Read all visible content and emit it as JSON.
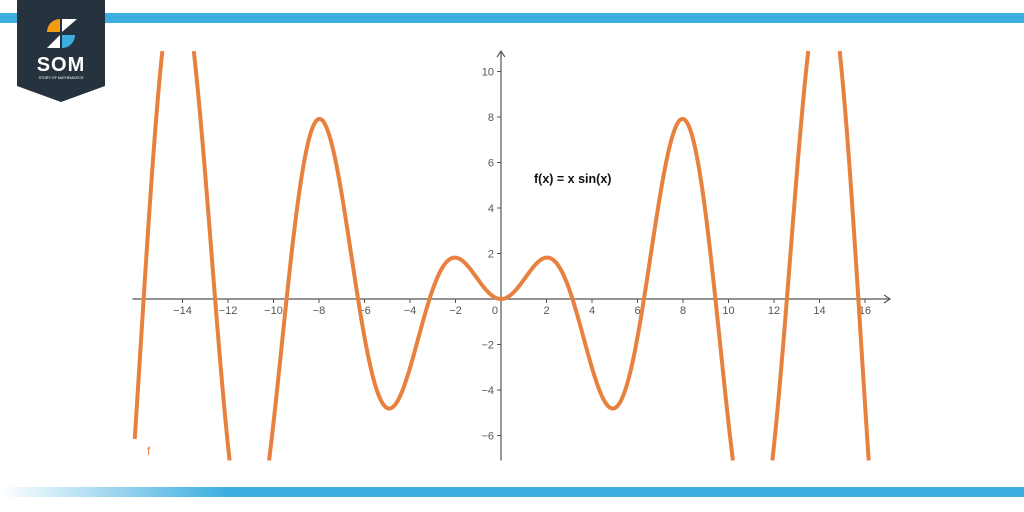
{
  "brand": {
    "logo_text": "SOM",
    "logo_subtext": "STORY OF MATHEMATICS",
    "colors": {
      "bar": "#3daee0",
      "logo_bg": "#26333f",
      "orange": "#f39c12",
      "blue": "#3daee0"
    }
  },
  "chart_data": {
    "type": "line",
    "title": "f(x) = x sin(x)",
    "function": "x*sin(x)",
    "series": [
      {
        "name": "f",
        "color": "#e8813f",
        "x_range": [
          -16.1,
          16.2
        ]
      }
    ],
    "xlim": [
      -16.2,
      17.1
    ],
    "ylim": [
      -7.1,
      10.9
    ],
    "x_ticks": [
      -14,
      -12,
      -10,
      -8,
      -6,
      -4,
      -2,
      0,
      2,
      4,
      6,
      8,
      10,
      12,
      14,
      16
    ],
    "y_ticks": [
      -6,
      -4,
      -2,
      2,
      4,
      6,
      8,
      10
    ],
    "grid": false,
    "axis_color": "#555555"
  }
}
